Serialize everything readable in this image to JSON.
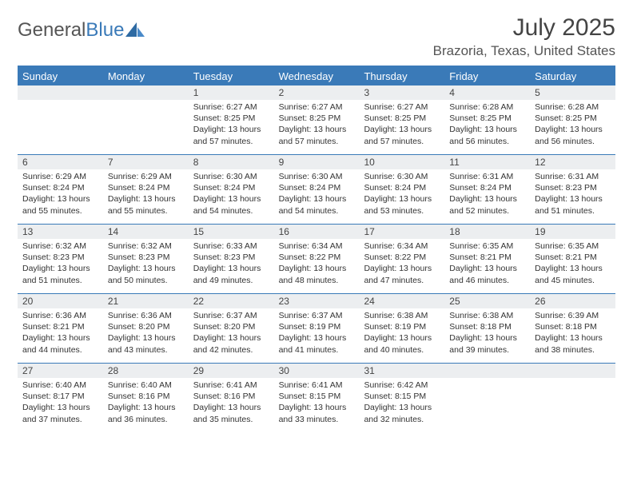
{
  "logo": {
    "text1": "General",
    "text2": "Blue"
  },
  "title": "July 2025",
  "location": "Brazoria, Texas, United States",
  "colors": {
    "accent": "#3a7ab8",
    "daynum_bg": "#eceef0",
    "text": "#333333",
    "header_text": "#555555",
    "white": "#ffffff"
  },
  "weekdays": [
    "Sunday",
    "Monday",
    "Tuesday",
    "Wednesday",
    "Thursday",
    "Friday",
    "Saturday"
  ],
  "labels": {
    "sunrise": "Sunrise:",
    "sunset": "Sunset:",
    "daylight": "Daylight:"
  },
  "weeks": [
    [
      null,
      null,
      {
        "n": "1",
        "sunrise": "6:27 AM",
        "sunset": "8:25 PM",
        "daylight": "13 hours and 57 minutes."
      },
      {
        "n": "2",
        "sunrise": "6:27 AM",
        "sunset": "8:25 PM",
        "daylight": "13 hours and 57 minutes."
      },
      {
        "n": "3",
        "sunrise": "6:27 AM",
        "sunset": "8:25 PM",
        "daylight": "13 hours and 57 minutes."
      },
      {
        "n": "4",
        "sunrise": "6:28 AM",
        "sunset": "8:25 PM",
        "daylight": "13 hours and 56 minutes."
      },
      {
        "n": "5",
        "sunrise": "6:28 AM",
        "sunset": "8:25 PM",
        "daylight": "13 hours and 56 minutes."
      }
    ],
    [
      {
        "n": "6",
        "sunrise": "6:29 AM",
        "sunset": "8:24 PM",
        "daylight": "13 hours and 55 minutes."
      },
      {
        "n": "7",
        "sunrise": "6:29 AM",
        "sunset": "8:24 PM",
        "daylight": "13 hours and 55 minutes."
      },
      {
        "n": "8",
        "sunrise": "6:30 AM",
        "sunset": "8:24 PM",
        "daylight": "13 hours and 54 minutes."
      },
      {
        "n": "9",
        "sunrise": "6:30 AM",
        "sunset": "8:24 PM",
        "daylight": "13 hours and 54 minutes."
      },
      {
        "n": "10",
        "sunrise": "6:30 AM",
        "sunset": "8:24 PM",
        "daylight": "13 hours and 53 minutes."
      },
      {
        "n": "11",
        "sunrise": "6:31 AM",
        "sunset": "8:24 PM",
        "daylight": "13 hours and 52 minutes."
      },
      {
        "n": "12",
        "sunrise": "6:31 AM",
        "sunset": "8:23 PM",
        "daylight": "13 hours and 51 minutes."
      }
    ],
    [
      {
        "n": "13",
        "sunrise": "6:32 AM",
        "sunset": "8:23 PM",
        "daylight": "13 hours and 51 minutes."
      },
      {
        "n": "14",
        "sunrise": "6:32 AM",
        "sunset": "8:23 PM",
        "daylight": "13 hours and 50 minutes."
      },
      {
        "n": "15",
        "sunrise": "6:33 AM",
        "sunset": "8:23 PM",
        "daylight": "13 hours and 49 minutes."
      },
      {
        "n": "16",
        "sunrise": "6:34 AM",
        "sunset": "8:22 PM",
        "daylight": "13 hours and 48 minutes."
      },
      {
        "n": "17",
        "sunrise": "6:34 AM",
        "sunset": "8:22 PM",
        "daylight": "13 hours and 47 minutes."
      },
      {
        "n": "18",
        "sunrise": "6:35 AM",
        "sunset": "8:21 PM",
        "daylight": "13 hours and 46 minutes."
      },
      {
        "n": "19",
        "sunrise": "6:35 AM",
        "sunset": "8:21 PM",
        "daylight": "13 hours and 45 minutes."
      }
    ],
    [
      {
        "n": "20",
        "sunrise": "6:36 AM",
        "sunset": "8:21 PM",
        "daylight": "13 hours and 44 minutes."
      },
      {
        "n": "21",
        "sunrise": "6:36 AM",
        "sunset": "8:20 PM",
        "daylight": "13 hours and 43 minutes."
      },
      {
        "n": "22",
        "sunrise": "6:37 AM",
        "sunset": "8:20 PM",
        "daylight": "13 hours and 42 minutes."
      },
      {
        "n": "23",
        "sunrise": "6:37 AM",
        "sunset": "8:19 PM",
        "daylight": "13 hours and 41 minutes."
      },
      {
        "n": "24",
        "sunrise": "6:38 AM",
        "sunset": "8:19 PM",
        "daylight": "13 hours and 40 minutes."
      },
      {
        "n": "25",
        "sunrise": "6:38 AM",
        "sunset": "8:18 PM",
        "daylight": "13 hours and 39 minutes."
      },
      {
        "n": "26",
        "sunrise": "6:39 AM",
        "sunset": "8:18 PM",
        "daylight": "13 hours and 38 minutes."
      }
    ],
    [
      {
        "n": "27",
        "sunrise": "6:40 AM",
        "sunset": "8:17 PM",
        "daylight": "13 hours and 37 minutes."
      },
      {
        "n": "28",
        "sunrise": "6:40 AM",
        "sunset": "8:16 PM",
        "daylight": "13 hours and 36 minutes."
      },
      {
        "n": "29",
        "sunrise": "6:41 AM",
        "sunset": "8:16 PM",
        "daylight": "13 hours and 35 minutes."
      },
      {
        "n": "30",
        "sunrise": "6:41 AM",
        "sunset": "8:15 PM",
        "daylight": "13 hours and 33 minutes."
      },
      {
        "n": "31",
        "sunrise": "6:42 AM",
        "sunset": "8:15 PM",
        "daylight": "13 hours and 32 minutes."
      },
      null,
      null
    ]
  ]
}
